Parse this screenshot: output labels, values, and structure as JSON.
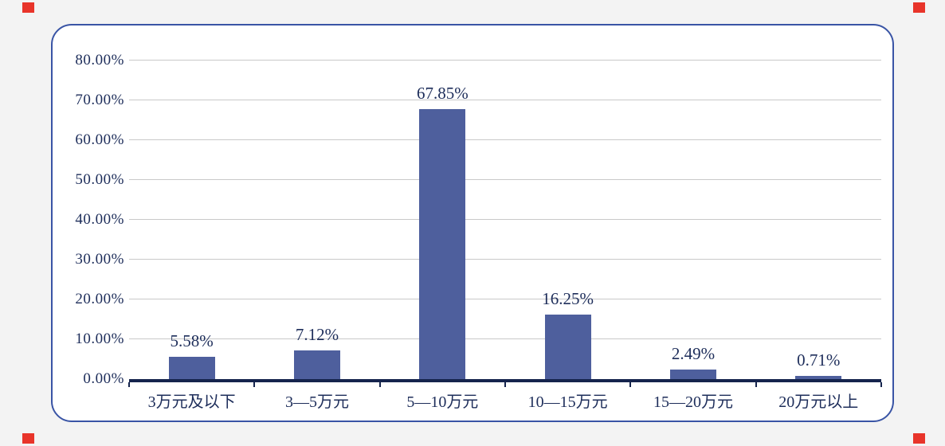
{
  "chart_data": {
    "type": "bar",
    "title": "",
    "xlabel": "",
    "ylabel": "",
    "categories": [
      "3万元及以下",
      "3—5万元",
      "5—10万元",
      "10—15万元",
      "15—20万元",
      "20万元以上"
    ],
    "values": [
      5.58,
      7.12,
      67.85,
      16.25,
      2.49,
      0.71
    ],
    "value_labels": [
      "5.58%",
      "7.12%",
      "67.85%",
      "16.25%",
      "2.49%",
      "0.71%"
    ],
    "ylim": [
      0,
      80
    ],
    "ytick_step": 10,
    "ytick_labels": [
      "0.00%",
      "10.00%",
      "20.00%",
      "30.00%",
      "40.00%",
      "50.00%",
      "60.00%",
      "70.00%",
      "80.00%"
    ],
    "grid": true,
    "legend": false
  },
  "colors": {
    "page_bg": "#f3f3f3",
    "card_bg": "#ffffff",
    "border": "#3954a5",
    "bar": "#4e5f9d",
    "text": "#1d2d5a",
    "gridline": "#c9c9c9",
    "axis_line": "#15244d",
    "corner_mark": "#e8342a"
  }
}
